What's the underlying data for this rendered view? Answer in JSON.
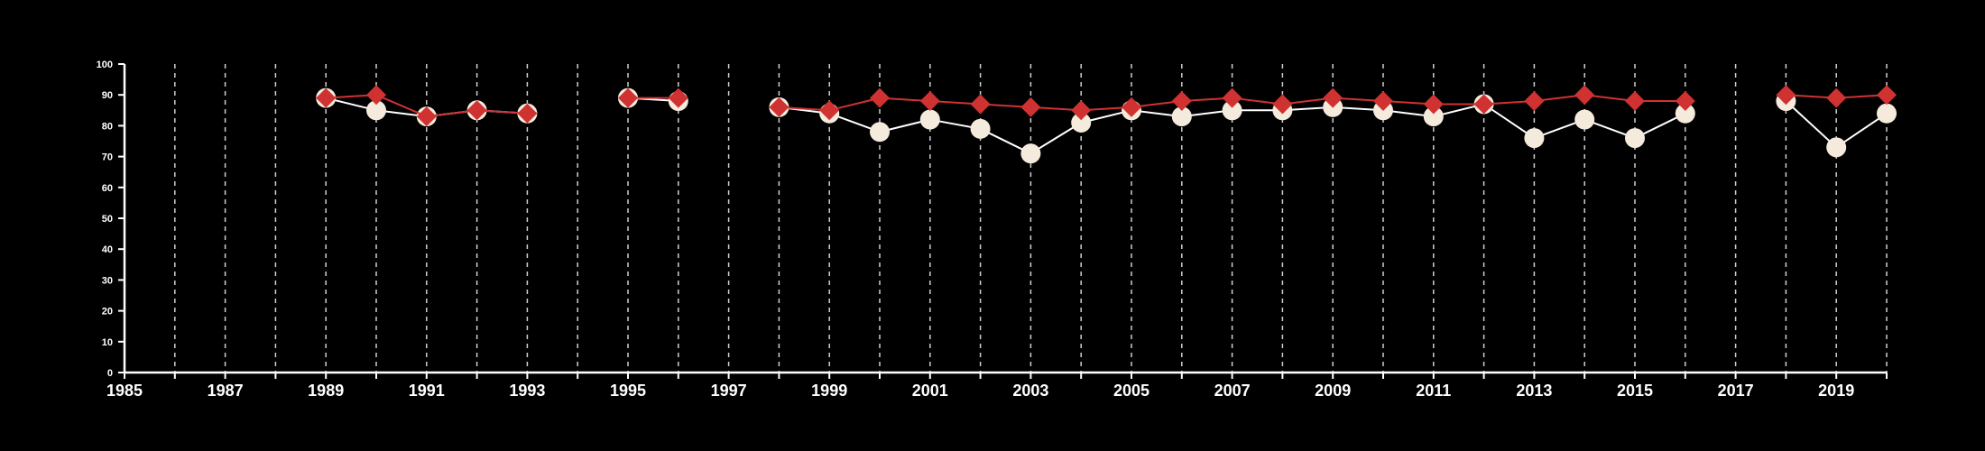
{
  "chart_data": {
    "type": "line",
    "title": "",
    "xlabel": "",
    "ylabel": "",
    "xlim": [
      1985,
      2020
    ],
    "ylim": [
      0,
      100
    ],
    "x_ticks": [
      1985,
      1987,
      1989,
      1991,
      1993,
      1995,
      1997,
      1999,
      2001,
      2003,
      2005,
      2007,
      2009,
      2011,
      2013,
      2015,
      2017,
      2019
    ],
    "y_ticks": [
      0,
      10,
      20,
      30,
      40,
      50,
      60,
      70,
      80,
      90,
      100
    ],
    "grid": "vertical dashed lines at every year",
    "legend": "none",
    "background": "#000000",
    "series": [
      {
        "marker": "circle",
        "color": "#f5ebdc",
        "line_color": "#ffffff",
        "x": [
          1989,
          1990,
          1991,
          1992,
          1993,
          1995,
          1996,
          1998,
          1999,
          2000,
          2001,
          2002,
          2003,
          2004,
          2005,
          2006,
          2007,
          2008,
          2009,
          2010,
          2011,
          2012,
          2013,
          2014,
          2015,
          2016,
          2018,
          2019,
          2020
        ],
        "y": [
          89,
          85,
          83,
          85,
          84,
          89,
          88,
          86,
          84,
          78,
          82,
          79,
          71,
          81,
          85,
          83,
          85,
          85,
          86,
          85,
          83,
          87,
          76,
          82,
          76,
          84,
          88,
          73,
          84
        ]
      },
      {
        "marker": "diamond",
        "color": "#d03232",
        "line_color": "#d03232",
        "x": [
          1989,
          1990,
          1991,
          1992,
          1993,
          1995,
          1996,
          1998,
          1999,
          2000,
          2001,
          2002,
          2003,
          2004,
          2005,
          2006,
          2007,
          2008,
          2009,
          2010,
          2011,
          2012,
          2013,
          2014,
          2015,
          2016,
          2018,
          2019,
          2020
        ],
        "y": [
          89,
          90,
          83,
          85,
          84,
          89,
          89,
          86,
          85,
          89,
          88,
          87,
          86,
          85,
          86,
          88,
          89,
          87,
          89,
          88,
          87,
          87,
          88,
          90,
          88,
          88,
          90,
          89,
          90
        ]
      }
    ]
  }
}
